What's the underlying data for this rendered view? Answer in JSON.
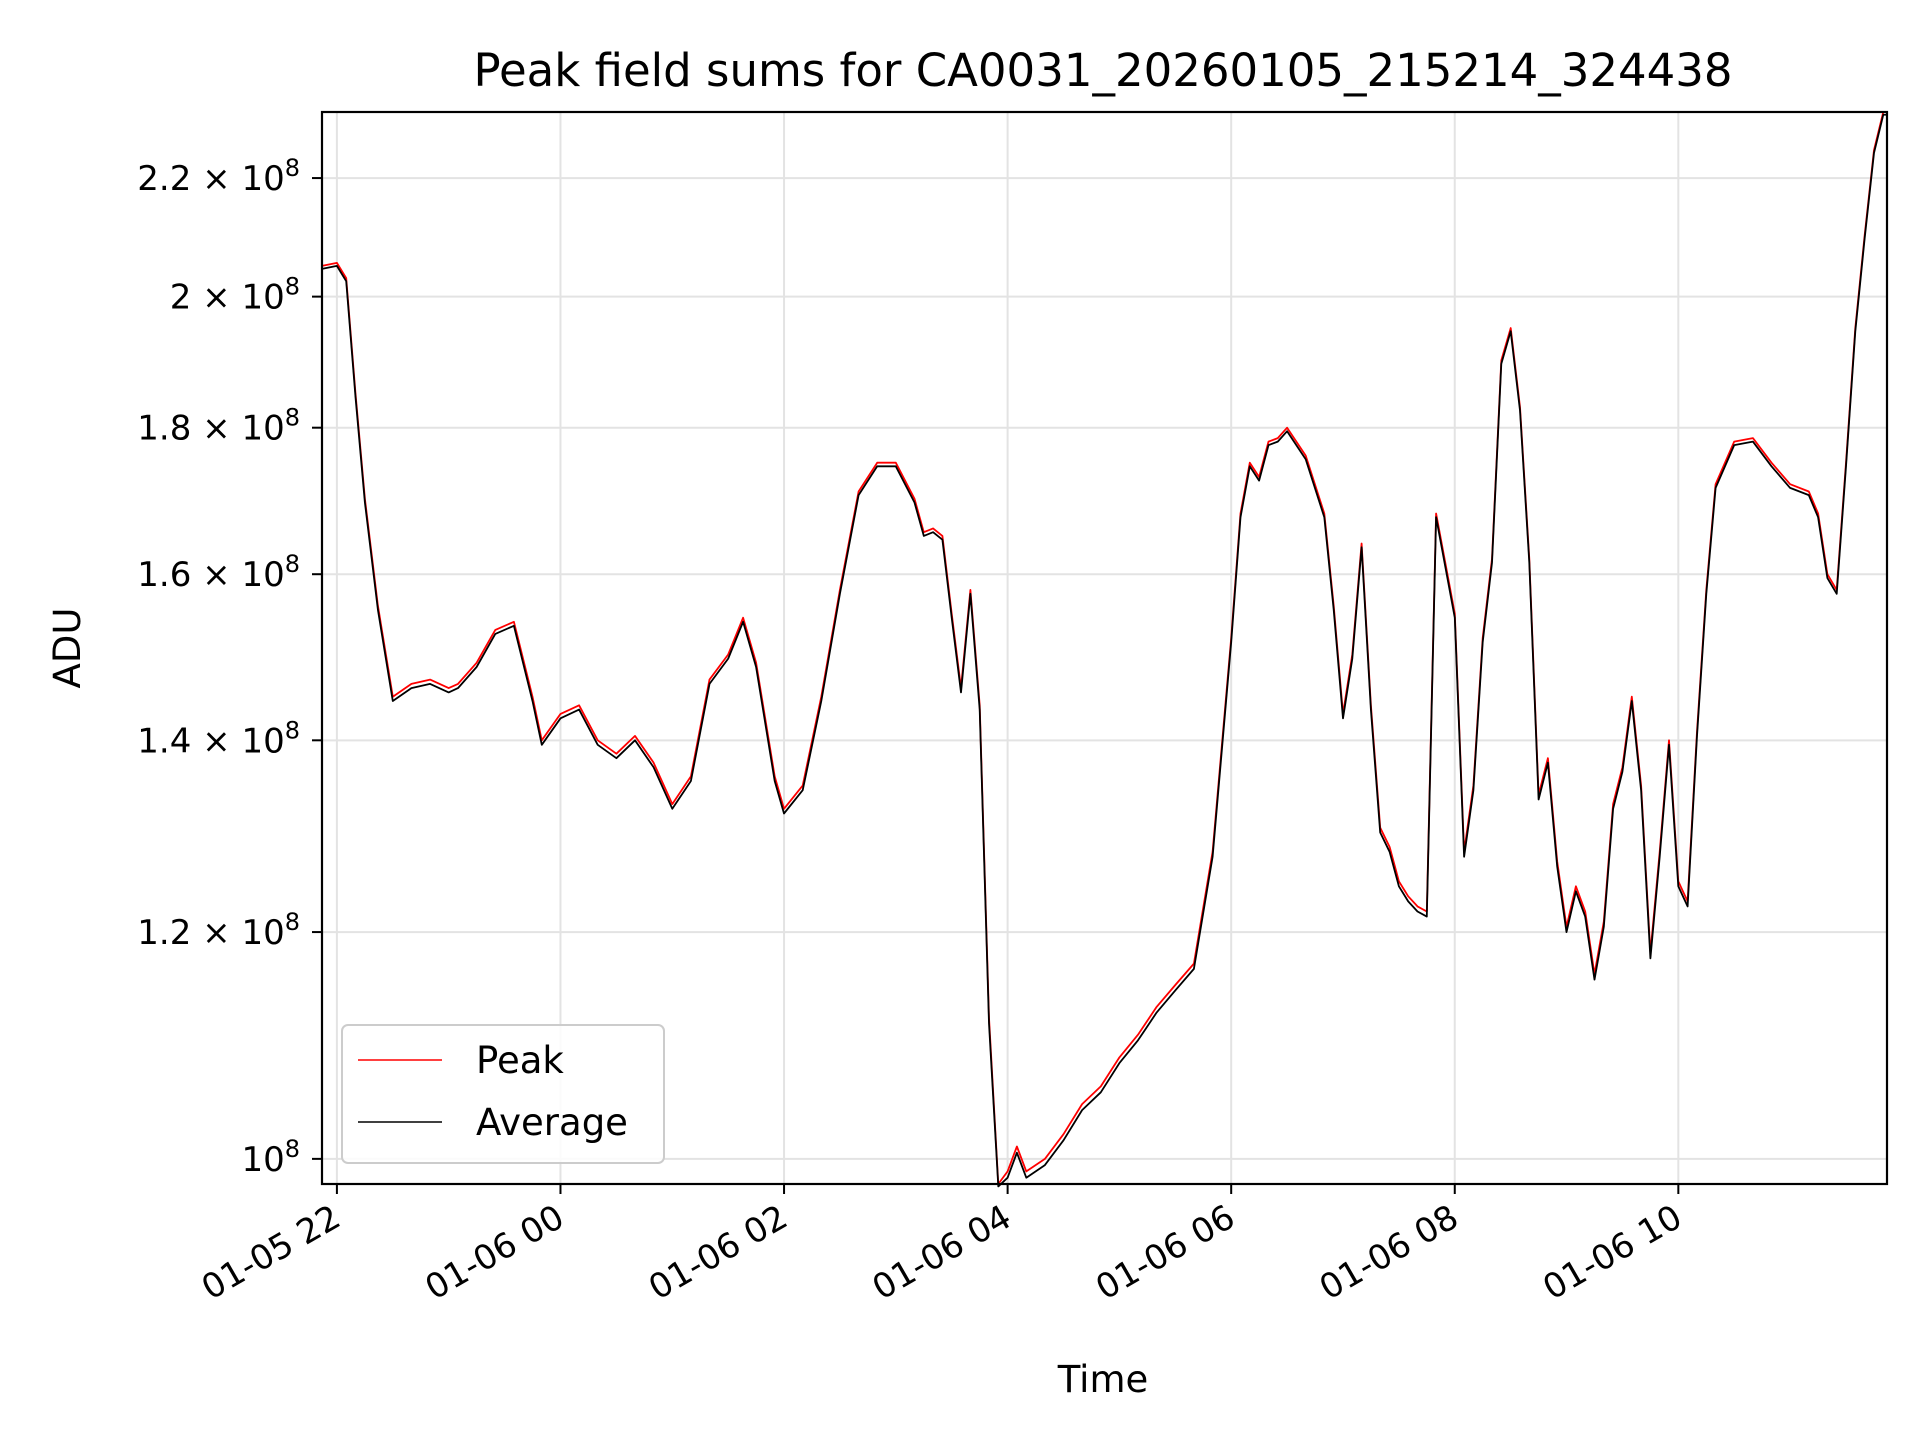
{
  "chart_data": {
    "type": "line",
    "title": "Peak field sums for CA0031_20260105_215214_324438",
    "xlabel": "Time",
    "ylabel": "ADU",
    "y_scale": "log",
    "ylim": [
      98000000,
      232000000
    ],
    "xlim": [
      "2026-01-05 21:52",
      "2026-01-06 11:52"
    ],
    "grid": true,
    "legend_position": "lower-left",
    "x_ticks": [
      {
        "t": "2026-01-05 22:00",
        "label": "01-05 22"
      },
      {
        "t": "2026-01-06 00:00",
        "label": "01-06 00"
      },
      {
        "t": "2026-01-06 02:00",
        "label": "01-06 02"
      },
      {
        "t": "2026-01-06 04:00",
        "label": "01-06 04"
      },
      {
        "t": "2026-01-06 06:00",
        "label": "01-06 06"
      },
      {
        "t": "2026-01-06 08:00",
        "label": "01-06 08"
      },
      {
        "t": "2026-01-06 10:00",
        "label": "01-06 10"
      }
    ],
    "y_ticks": [
      {
        "value": 100000000,
        "base": "10",
        "exp": "8"
      },
      {
        "value": 120000000,
        "base": "1.2 × 10",
        "exp": "8"
      },
      {
        "value": 140000000,
        "base": "1.4 × 10",
        "exp": "8"
      },
      {
        "value": 160000000,
        "base": "1.6 × 10",
        "exp": "8"
      },
      {
        "value": 180000000,
        "base": "1.8 × 10",
        "exp": "8"
      },
      {
        "value": 200000000,
        "base": "2 × 10",
        "exp": "8"
      },
      {
        "value": 220000000,
        "base": "2.2 × 10",
        "exp": "8"
      }
    ],
    "series": [
      {
        "name": "Peak",
        "color": "#ff0000",
        "x": [
          "2026-01-05 21:52",
          "2026-01-05 22:00",
          "2026-01-05 22:05",
          "2026-01-05 22:10",
          "2026-01-05 22:15",
          "2026-01-05 22:22",
          "2026-01-05 22:30",
          "2026-01-05 22:40",
          "2026-01-05 22:50",
          "2026-01-05 23:00",
          "2026-01-05 23:05",
          "2026-01-05 23:15",
          "2026-01-05 23:25",
          "2026-01-05 23:35",
          "2026-01-05 23:45",
          "2026-01-05 23:50",
          "2026-01-06 00:00",
          "2026-01-06 00:10",
          "2026-01-06 00:20",
          "2026-01-06 00:30",
          "2026-01-06 00:40",
          "2026-01-06 00:50",
          "2026-01-06 01:00",
          "2026-01-06 01:10",
          "2026-01-06 01:20",
          "2026-01-06 01:30",
          "2026-01-06 01:38",
          "2026-01-06 01:45",
          "2026-01-06 01:55",
          "2026-01-06 02:00",
          "2026-01-06 02:10",
          "2026-01-06 02:20",
          "2026-01-06 02:30",
          "2026-01-06 02:40",
          "2026-01-06 02:50",
          "2026-01-06 03:00",
          "2026-01-06 03:10",
          "2026-01-06 03:15",
          "2026-01-06 03:20",
          "2026-01-06 03:25",
          "2026-01-06 03:30",
          "2026-01-06 03:35",
          "2026-01-06 03:40",
          "2026-01-06 03:45",
          "2026-01-06 03:50",
          "2026-01-06 03:55",
          "2026-01-06 04:00",
          "2026-01-06 04:05",
          "2026-01-06 04:10",
          "2026-01-06 04:20",
          "2026-01-06 04:30",
          "2026-01-06 04:40",
          "2026-01-06 04:50",
          "2026-01-06 05:00",
          "2026-01-06 05:10",
          "2026-01-06 05:20",
          "2026-01-06 05:30",
          "2026-01-06 05:40",
          "2026-01-06 05:50",
          "2026-01-06 06:00",
          "2026-01-06 06:05",
          "2026-01-06 06:10",
          "2026-01-06 06:15",
          "2026-01-06 06:20",
          "2026-01-06 06:25",
          "2026-01-06 06:30",
          "2026-01-06 06:40",
          "2026-01-06 06:50",
          "2026-01-06 06:55",
          "2026-01-06 07:00",
          "2026-01-06 07:05",
          "2026-01-06 07:10",
          "2026-01-06 07:15",
          "2026-01-06 07:20",
          "2026-01-06 07:25",
          "2026-01-06 07:30",
          "2026-01-06 07:35",
          "2026-01-06 07:40",
          "2026-01-06 07:45",
          "2026-01-06 07:50",
          "2026-01-06 08:00",
          "2026-01-06 08:05",
          "2026-01-06 08:10",
          "2026-01-06 08:15",
          "2026-01-06 08:20",
          "2026-01-06 08:25",
          "2026-01-06 08:30",
          "2026-01-06 08:35",
          "2026-01-06 08:40",
          "2026-01-06 08:45",
          "2026-01-06 08:50",
          "2026-01-06 08:55",
          "2026-01-06 09:00",
          "2026-01-06 09:05",
          "2026-01-06 09:10",
          "2026-01-06 09:15",
          "2026-01-06 09:20",
          "2026-01-06 09:25",
          "2026-01-06 09:30",
          "2026-01-06 09:35",
          "2026-01-06 09:40",
          "2026-01-06 09:45",
          "2026-01-06 09:50",
          "2026-01-06 09:55",
          "2026-01-06 10:00",
          "2026-01-06 10:05",
          "2026-01-06 10:10",
          "2026-01-06 10:15",
          "2026-01-06 10:20",
          "2026-01-06 10:30",
          "2026-01-06 10:40",
          "2026-01-06 10:50",
          "2026-01-06 11:00",
          "2026-01-06 11:10",
          "2026-01-06 11:15",
          "2026-01-06 11:20",
          "2026-01-06 11:25",
          "2026-01-06 11:30",
          "2026-01-06 11:35",
          "2026-01-06 11:40",
          "2026-01-06 11:45",
          "2026-01-06 11:50",
          "2026-01-06 11:52"
        ],
        "values": [
          205000000,
          205500000,
          203000000,
          185000000,
          170000000,
          156000000,
          145000000,
          146500000,
          147000000,
          146000000,
          146500000,
          149000000,
          153000000,
          154000000,
          145000000,
          140000000,
          143000000,
          144000000,
          140000000,
          138500000,
          140500000,
          137500000,
          133000000,
          136000000,
          147000000,
          150000000,
          154500000,
          149000000,
          136000000,
          132500000,
          135000000,
          145000000,
          158000000,
          171000000,
          175000000,
          175000000,
          170000000,
          165500000,
          166000000,
          165000000,
          155000000,
          146000000,
          158000000,
          144000000,
          112000000,
          98000000,
          99000000,
          101000000,
          99000000,
          100000000,
          102000000,
          104500000,
          106000000,
          108500000,
          110500000,
          113000000,
          115000000,
          117000000,
          128000000,
          152000000,
          168000000,
          175000000,
          173000000,
          178000000,
          178500000,
          180000000,
          176000000,
          168000000,
          156000000,
          143000000,
          150000000,
          164000000,
          144000000,
          130500000,
          128500000,
          125000000,
          123500000,
          122500000,
          122000000,
          168000000,
          155000000,
          128000000,
          135000000,
          152000000,
          162000000,
          190000000,
          195000000,
          183000000,
          162000000,
          134000000,
          138000000,
          127000000,
          120500000,
          124500000,
          122000000,
          116000000,
          121000000,
          133000000,
          137000000,
          145000000,
          135000000,
          118000000,
          128000000,
          140000000,
          125000000,
          123000000,
          141000000,
          158000000,
          172000000,
          178000000,
          178500000,
          175000000,
          172000000,
          171000000,
          168000000,
          160000000,
          158000000,
          175000000,
          195000000,
          210000000,
          225000000,
          232000000,
          232000000
        ]
      },
      {
        "name": "Average",
        "color": "#000000",
        "x": [
          "2026-01-05 21:52",
          "2026-01-05 22:00",
          "2026-01-05 22:05",
          "2026-01-05 22:10",
          "2026-01-05 22:15",
          "2026-01-05 22:22",
          "2026-01-05 22:30",
          "2026-01-05 22:40",
          "2026-01-05 22:50",
          "2026-01-05 23:00",
          "2026-01-05 23:05",
          "2026-01-05 23:15",
          "2026-01-05 23:25",
          "2026-01-05 23:35",
          "2026-01-05 23:45",
          "2026-01-05 23:50",
          "2026-01-06 00:00",
          "2026-01-06 00:10",
          "2026-01-06 00:20",
          "2026-01-06 00:30",
          "2026-01-06 00:40",
          "2026-01-06 00:50",
          "2026-01-06 01:00",
          "2026-01-06 01:10",
          "2026-01-06 01:20",
          "2026-01-06 01:30",
          "2026-01-06 01:38",
          "2026-01-06 01:45",
          "2026-01-06 01:55",
          "2026-01-06 02:00",
          "2026-01-06 02:10",
          "2026-01-06 02:20",
          "2026-01-06 02:30",
          "2026-01-06 02:40",
          "2026-01-06 02:50",
          "2026-01-06 03:00",
          "2026-01-06 03:10",
          "2026-01-06 03:15",
          "2026-01-06 03:20",
          "2026-01-06 03:25",
          "2026-01-06 03:30",
          "2026-01-06 03:35",
          "2026-01-06 03:40",
          "2026-01-06 03:45",
          "2026-01-06 03:50",
          "2026-01-06 03:55",
          "2026-01-06 04:00",
          "2026-01-06 04:05",
          "2026-01-06 04:10",
          "2026-01-06 04:20",
          "2026-01-06 04:30",
          "2026-01-06 04:40",
          "2026-01-06 04:50",
          "2026-01-06 05:00",
          "2026-01-06 05:10",
          "2026-01-06 05:20",
          "2026-01-06 05:30",
          "2026-01-06 05:40",
          "2026-01-06 05:50",
          "2026-01-06 06:00",
          "2026-01-06 06:05",
          "2026-01-06 06:10",
          "2026-01-06 06:15",
          "2026-01-06 06:20",
          "2026-01-06 06:25",
          "2026-01-06 06:30",
          "2026-01-06 06:40",
          "2026-01-06 06:50",
          "2026-01-06 06:55",
          "2026-01-06 07:00",
          "2026-01-06 07:05",
          "2026-01-06 07:10",
          "2026-01-06 07:15",
          "2026-01-06 07:20",
          "2026-01-06 07:25",
          "2026-01-06 07:30",
          "2026-01-06 07:35",
          "2026-01-06 07:40",
          "2026-01-06 07:45",
          "2026-01-06 07:50",
          "2026-01-06 08:00",
          "2026-01-06 08:05",
          "2026-01-06 08:10",
          "2026-01-06 08:15",
          "2026-01-06 08:20",
          "2026-01-06 08:25",
          "2026-01-06 08:30",
          "2026-01-06 08:35",
          "2026-01-06 08:40",
          "2026-01-06 08:45",
          "2026-01-06 08:50",
          "2026-01-06 08:55",
          "2026-01-06 09:00",
          "2026-01-06 09:05",
          "2026-01-06 09:10",
          "2026-01-06 09:15",
          "2026-01-06 09:20",
          "2026-01-06 09:25",
          "2026-01-06 09:30",
          "2026-01-06 09:35",
          "2026-01-06 09:40",
          "2026-01-06 09:45",
          "2026-01-06 09:50",
          "2026-01-06 09:55",
          "2026-01-06 10:00",
          "2026-01-06 10:05",
          "2026-01-06 10:10",
          "2026-01-06 10:15",
          "2026-01-06 10:20",
          "2026-01-06 10:30",
          "2026-01-06 10:40",
          "2026-01-06 10:50",
          "2026-01-06 11:00",
          "2026-01-06 11:10",
          "2026-01-06 11:15",
          "2026-01-06 11:20",
          "2026-01-06 11:25",
          "2026-01-06 11:30",
          "2026-01-06 11:35",
          "2026-01-06 11:40",
          "2026-01-06 11:45",
          "2026-01-06 11:50",
          "2026-01-06 11:52"
        ],
        "values": [
          204500000,
          205000000,
          202500000,
          184500000,
          169500000,
          155500000,
          144500000,
          146000000,
          146500000,
          145500000,
          146000000,
          148500000,
          152500000,
          153500000,
          144500000,
          139500000,
          142500000,
          143500000,
          139500000,
          138000000,
          140000000,
          137000000,
          132500000,
          135500000,
          146500000,
          149500000,
          154000000,
          148500000,
          135500000,
          132000000,
          134500000,
          144500000,
          157500000,
          170500000,
          174500000,
          174500000,
          169500000,
          165000000,
          165500000,
          164500000,
          154500000,
          145500000,
          157500000,
          143500000,
          111500000,
          97800000,
          98500000,
          100500000,
          98500000,
          99500000,
          101500000,
          104000000,
          105500000,
          108000000,
          110000000,
          112500000,
          114500000,
          116500000,
          127500000,
          151500000,
          167500000,
          174500000,
          172500000,
          177500000,
          178000000,
          179500000,
          175500000,
          167500000,
          155500000,
          142500000,
          149500000,
          163500000,
          143500000,
          130000000,
          128000000,
          124500000,
          123000000,
          122000000,
          121500000,
          167500000,
          154500000,
          127500000,
          134500000,
          151500000,
          161500000,
          189500000,
          194500000,
          182500000,
          161500000,
          133500000,
          137500000,
          126500000,
          120000000,
          124000000,
          121500000,
          115500000,
          120500000,
          132500000,
          136500000,
          144500000,
          134500000,
          117500000,
          127500000,
          139500000,
          124500000,
          122500000,
          140500000,
          157500000,
          171500000,
          177500000,
          178000000,
          174500000,
          171500000,
          170500000,
          167500000,
          159500000,
          157500000,
          174500000,
          194500000,
          209500000,
          224500000,
          231500000,
          231500000
        ]
      }
    ]
  }
}
